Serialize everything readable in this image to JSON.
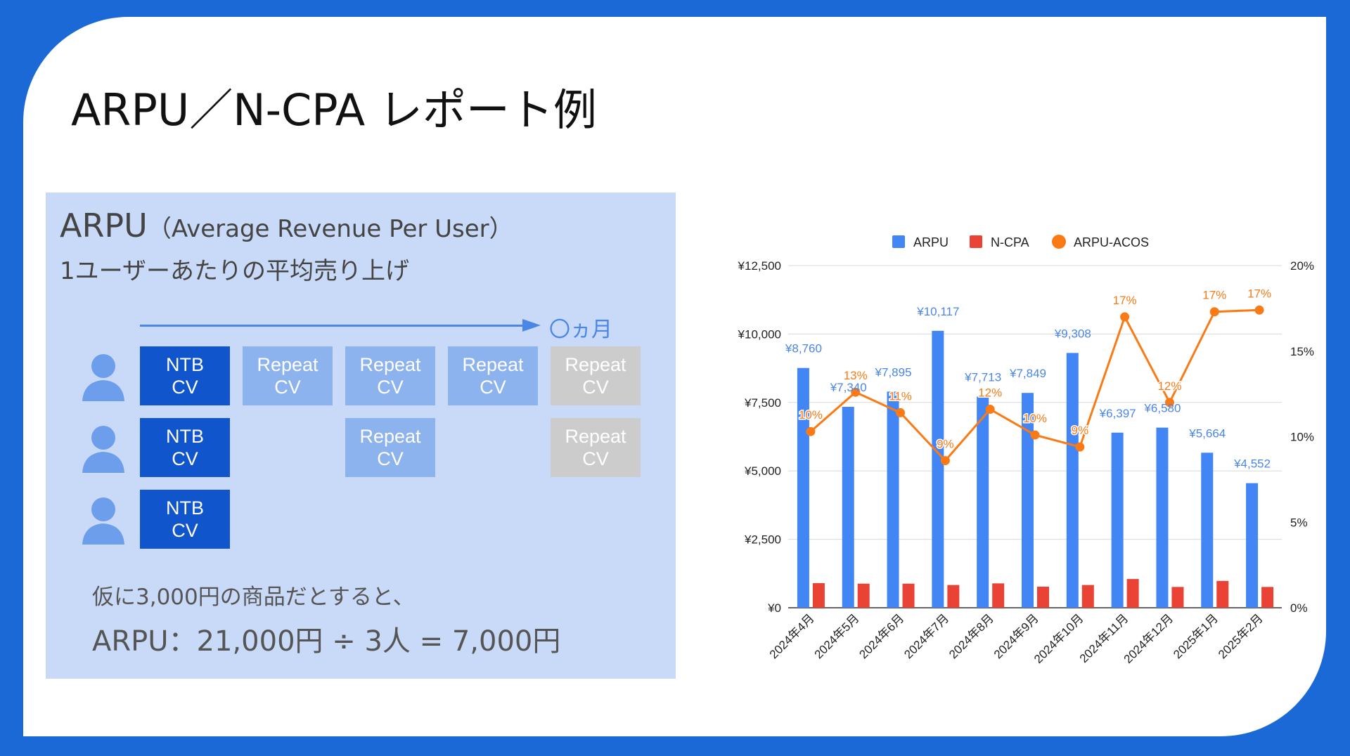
{
  "slide": {
    "title": "ARPU／N-CPA レポート例"
  },
  "panel": {
    "heading_big": "ARPU",
    "heading_paren": "（Average Revenue Per User）",
    "subheading": "1ユーザーあたりの平均売り上げ",
    "timeline_label": "〇ヵ月",
    "rows": [
      {
        "cells": [
          {
            "col": 0,
            "kind": "ntb",
            "line1": "NTB",
            "line2": "CV"
          },
          {
            "col": 1,
            "kind": "rep",
            "line1": "Repeat",
            "line2": "CV"
          },
          {
            "col": 2,
            "kind": "rep",
            "line1": "Repeat",
            "line2": "CV"
          },
          {
            "col": 3,
            "kind": "rep",
            "line1": "Repeat",
            "line2": "CV"
          },
          {
            "col": 4,
            "kind": "gray",
            "line1": "Repeat",
            "line2": "CV"
          }
        ]
      },
      {
        "cells": [
          {
            "col": 0,
            "kind": "ntb",
            "line1": "NTB",
            "line2": "CV"
          },
          {
            "col": 2,
            "kind": "rep",
            "line1": "Repeat",
            "line2": "CV"
          },
          {
            "col": 4,
            "kind": "gray",
            "line1": "Repeat",
            "line2": "CV"
          }
        ]
      },
      {
        "cells": [
          {
            "col": 0,
            "kind": "ntb",
            "line1": "NTB",
            "line2": "CV"
          }
        ]
      }
    ],
    "note_line1": "仮に3,000円の商品だとすると、",
    "note_line2": "ARPU：21,000円 ÷ 3人 = 7,000円"
  },
  "colors": {
    "background": "#1a69d6",
    "ntb": "#1155cc",
    "repeat": "#8db3ee",
    "gray": "#cccccc",
    "panel": "#c9daf8",
    "arpu": "#4285f4",
    "ncpa": "#ea4335",
    "acos": "#fa7a15"
  },
  "icons": {
    "user": "user-silhouette-icon"
  },
  "chart_data": {
    "type": "bar",
    "categories": [
      "2024年4月",
      "2024年5月",
      "2024年6月",
      "2024年7月",
      "2024年8月",
      "2024年9月",
      "2024年10月",
      "2024年11月",
      "2024年12月",
      "2025年1月",
      "2025年2月"
    ],
    "series": [
      {
        "name": "ARPU",
        "type": "bar",
        "axis": "left",
        "color": "#4285f4",
        "values": [
          8760,
          7340,
          7895,
          10117,
          7713,
          7849,
          9308,
          6397,
          6580,
          5664,
          4552
        ],
        "labels": [
          "¥8,760",
          "¥7,340",
          "¥7,895",
          "¥10,117",
          "¥7,713",
          "¥7,849",
          "¥9,308",
          "¥6,397",
          "¥6,580",
          "¥5,664",
          "¥4,552"
        ]
      },
      {
        "name": "N-CPA",
        "type": "bar",
        "axis": "left",
        "color": "#ea4335",
        "values": [
          900,
          880,
          880,
          830,
          890,
          770,
          830,
          1050,
          760,
          980,
          760
        ]
      },
      {
        "name": "ARPU-ACOS",
        "type": "line",
        "axis": "right",
        "color": "#fa7a15",
        "values": [
          10.3,
          12.6,
          11.4,
          8.6,
          11.6,
          10.1,
          9.4,
          17.0,
          12.0,
          17.3,
          17.4
        ],
        "labels": [
          "10%",
          "13%",
          "11%",
          "9%",
          "12%",
          "10%",
          "9%",
          "17%",
          "12%",
          "17%",
          "17%"
        ]
      }
    ],
    "y_left": {
      "min": 0,
      "max": 12500,
      "ticks": [
        "¥0",
        "¥2,500",
        "¥5,000",
        "¥7,500",
        "¥10,000",
        "¥12,500"
      ]
    },
    "y_right": {
      "min": 0,
      "max": 20,
      "ticks": [
        "0%",
        "5%",
        "10%",
        "15%",
        "20%"
      ]
    },
    "legend": {
      "position": "top",
      "entries": [
        "ARPU",
        "N-CPA",
        "ARPU-ACOS"
      ]
    },
    "grid": true
  }
}
